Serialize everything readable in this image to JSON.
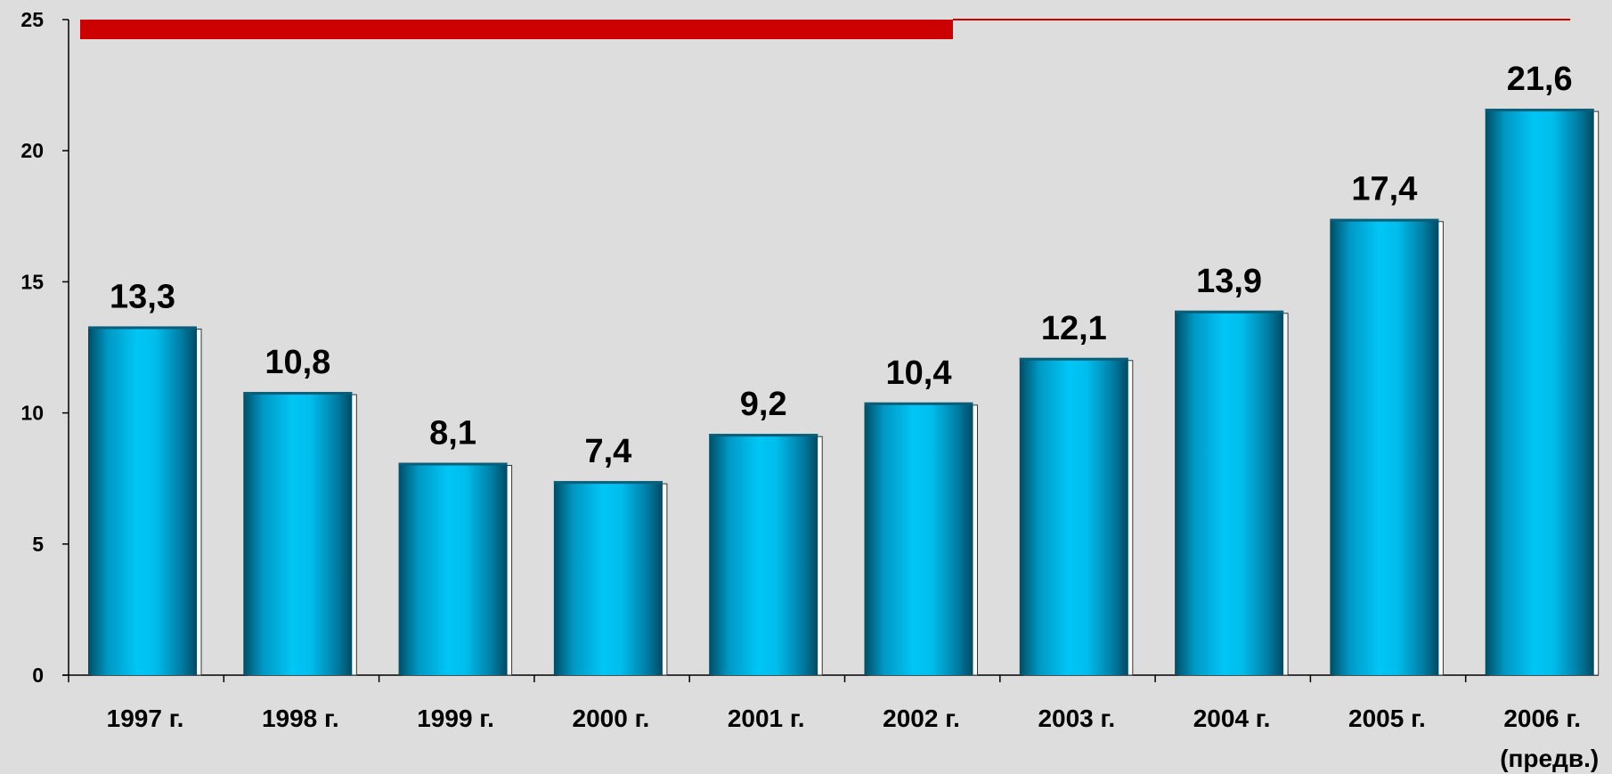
{
  "colors": {
    "background": "#dddddd",
    "bar_main": "#00c4f4",
    "bar_dark": "#006a88",
    "accent_red": "#cc0000",
    "axis": "#000000"
  },
  "chart_data": {
    "type": "bar",
    "categories": [
      "1997 г.",
      "1998 г.",
      "1999 г.",
      "2000 г.",
      "2001 г.",
      "2002 г.",
      "2003 г.",
      "2004 г.",
      "2005 г.",
      "2006 г."
    ],
    "category_notes": [
      "",
      "",
      "",
      "",
      "",
      "",
      "",
      "",
      "",
      "(предв.)"
    ],
    "values": [
      13.3,
      10.8,
      8.1,
      7.4,
      9.2,
      10.4,
      12.1,
      13.9,
      17.4,
      21.6
    ],
    "value_labels": [
      "13,3",
      "10,8",
      "8,1",
      "7,4",
      "9,2",
      "10,4",
      "12,1",
      "13,9",
      "17,4",
      "21,6"
    ],
    "yticks": [
      0,
      5,
      10,
      15,
      20,
      25
    ],
    "ylim": [
      0,
      25
    ],
    "title": "",
    "xlabel": "",
    "ylabel": "",
    "grid": false,
    "legend": "none"
  }
}
